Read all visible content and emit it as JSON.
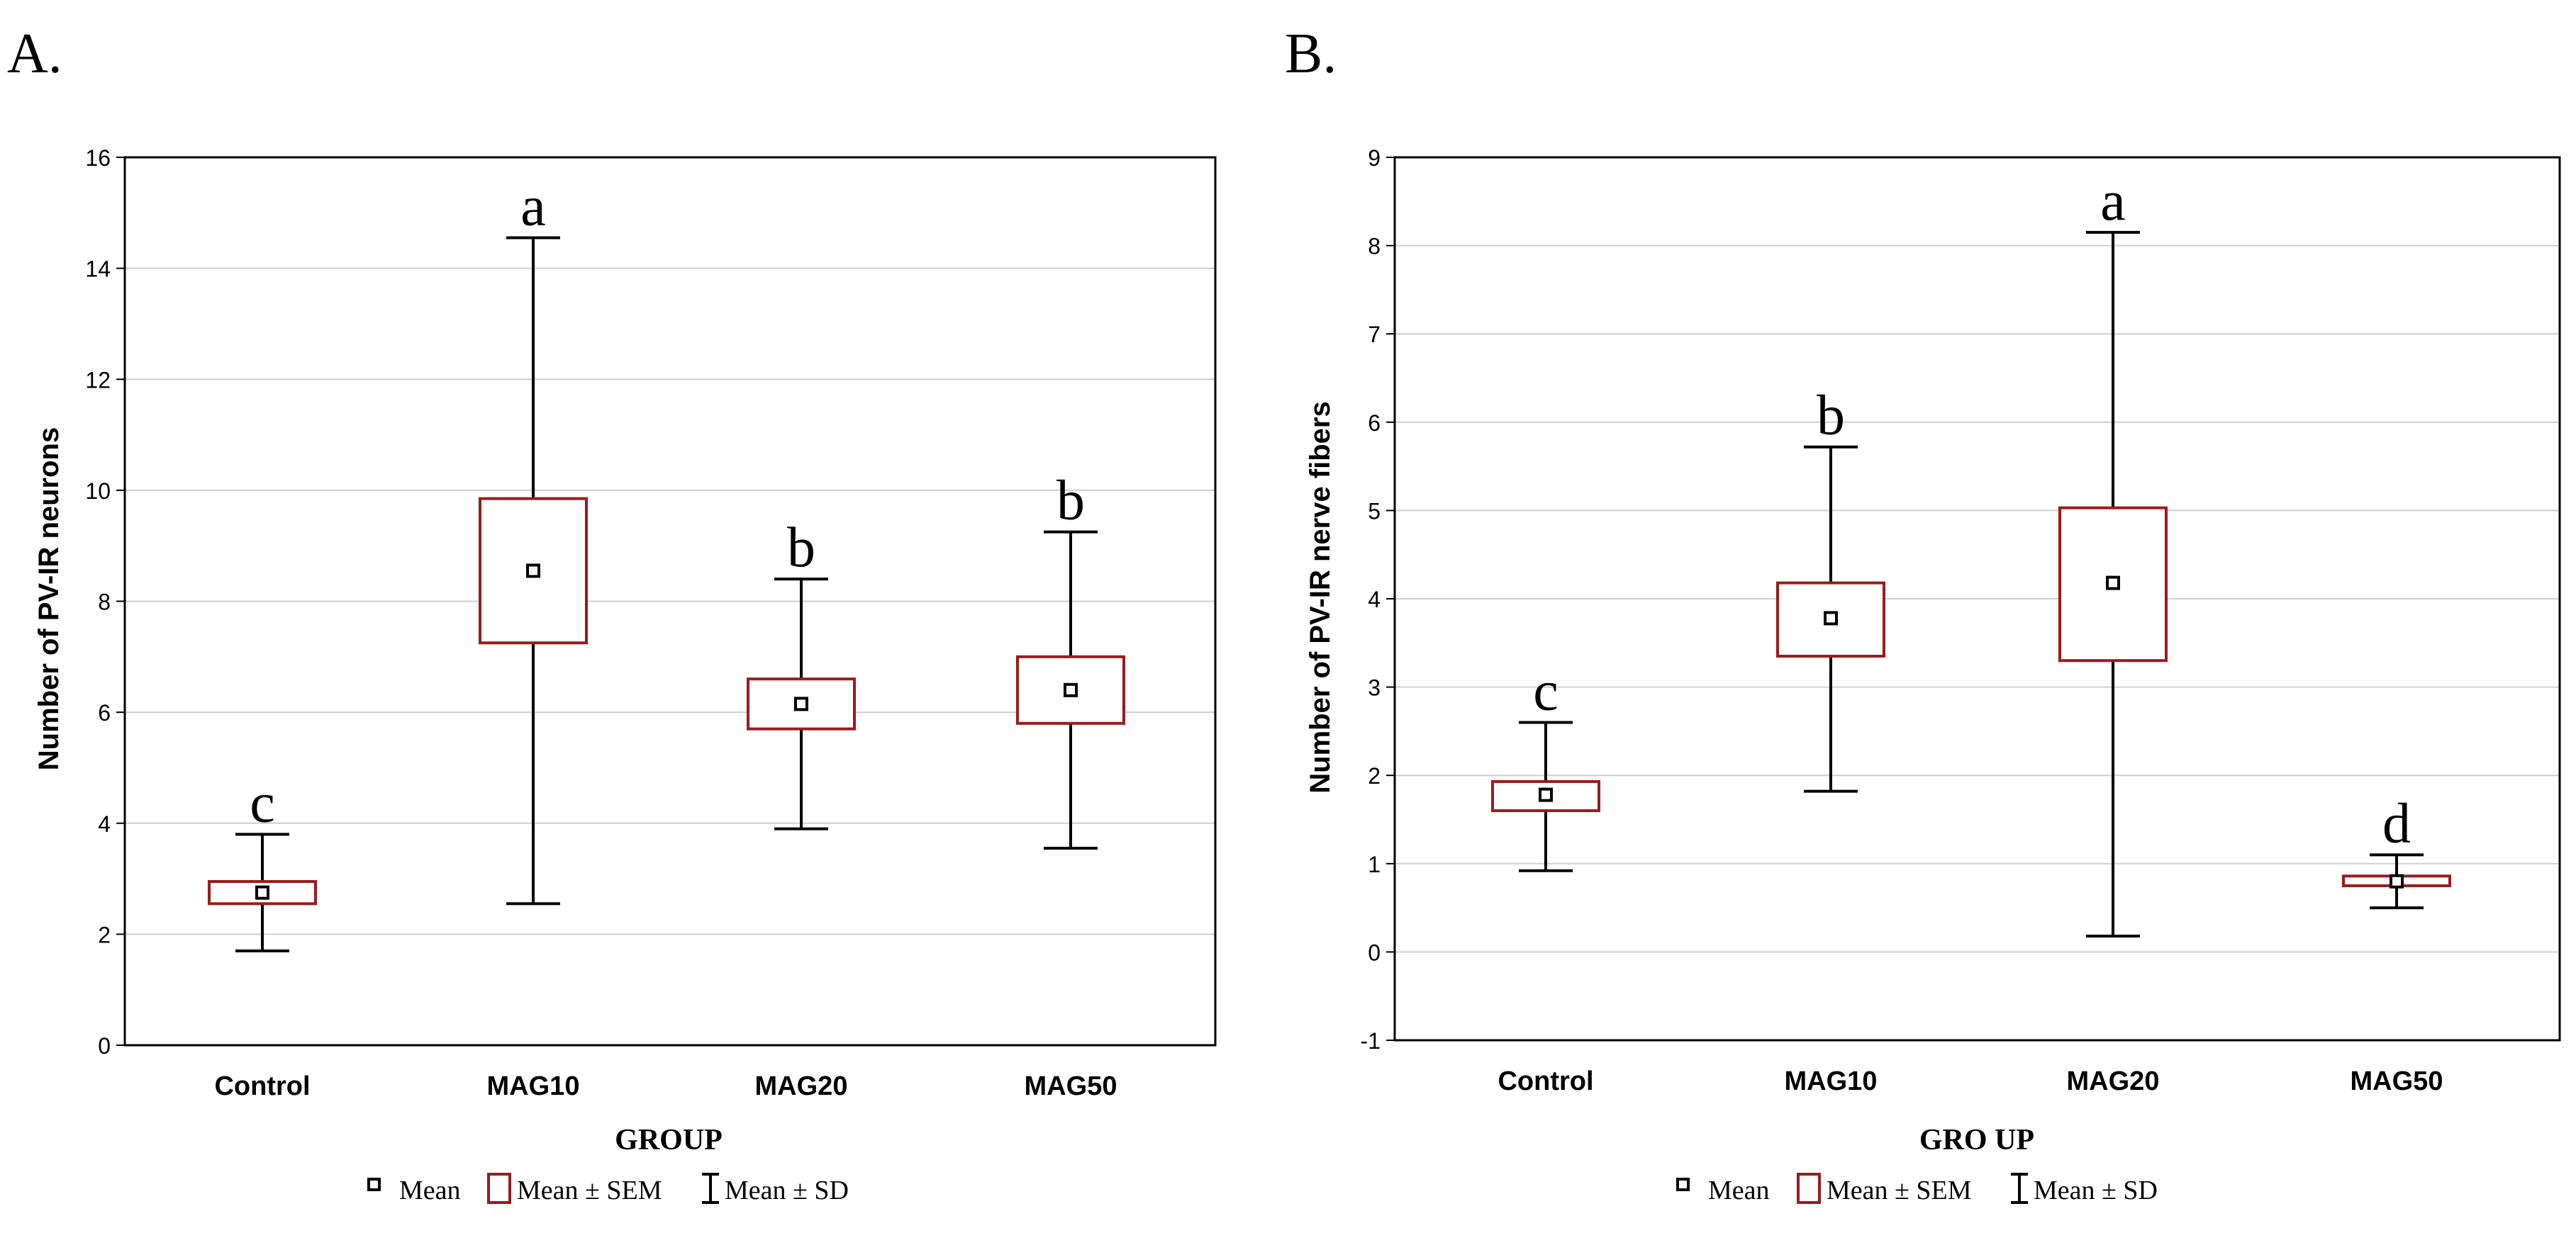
{
  "colors": {
    "box_stroke": "#9B1B1B",
    "whisker": "#000000",
    "grid": "#cfcfcf",
    "frame": "#000000",
    "mean_marker": "#000000",
    "background": "#ffffff"
  },
  "legend": {
    "mean_label": "Mean",
    "sem_label": "Mean ± SEM",
    "sd_label": "Mean ± SD"
  },
  "chart_data": [
    {
      "panel_label": "A.",
      "type": "box",
      "title": "",
      "xlabel": "GROUP",
      "ylabel": "Number of  PV-IR neurons",
      "ylim": [
        0,
        16
      ],
      "yticks": [
        "0",
        "2",
        "4",
        "6",
        "8",
        "10",
        "12",
        "14",
        "16"
      ],
      "ytick_values": [
        0,
        2,
        4,
        6,
        8,
        10,
        12,
        14,
        16
      ],
      "categories": [
        "Control",
        "MAG10",
        "MAG20",
        "MAG50"
      ],
      "mean": [
        2.75,
        8.55,
        6.15,
        6.4
      ],
      "sem_low": [
        2.55,
        7.25,
        5.7,
        5.8
      ],
      "sem_high": [
        2.95,
        9.85,
        6.6,
        7.0
      ],
      "sd_low": [
        1.7,
        2.55,
        3.9,
        3.55
      ],
      "sd_high": [
        3.8,
        14.55,
        8.4,
        9.25
      ],
      "significance": [
        "c",
        "a",
        "b",
        "b"
      ],
      "grid": true
    },
    {
      "panel_label": "B.",
      "type": "box",
      "title": "",
      "xlabel": "GRO UP",
      "ylabel": "Number of PV-IR nerve fibers",
      "ylim": [
        -1,
        9
      ],
      "yticks": [
        "-1",
        "0",
        "1",
        "2",
        "3",
        "4",
        "5",
        "6",
        "7",
        "8",
        "9"
      ],
      "ytick_values": [
        -1,
        0,
        1,
        2,
        3,
        4,
        5,
        6,
        7,
        8,
        9
      ],
      "categories": [
        "Control",
        "MAG10",
        "MAG20",
        "MAG50"
      ],
      "mean": [
        1.78,
        3.78,
        4.18,
        0.8
      ],
      "sem_low": [
        1.6,
        3.35,
        3.3,
        0.75
      ],
      "sem_high": [
        1.93,
        4.18,
        5.03,
        0.86
      ],
      "sd_low": [
        0.92,
        1.82,
        0.18,
        0.5
      ],
      "sd_high": [
        2.6,
        5.72,
        8.15,
        1.1
      ],
      "significance": [
        "c",
        "b",
        "a",
        "d"
      ],
      "grid": true
    }
  ]
}
